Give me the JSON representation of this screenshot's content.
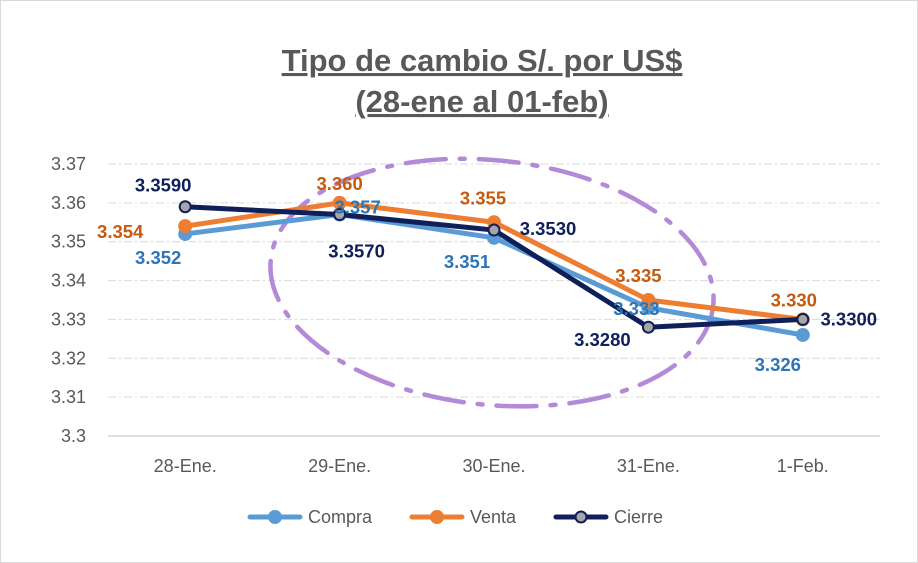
{
  "chart_data": {
    "type": "line",
    "title_lines": [
      "Tipo de cambio S/. por US$",
      "(28-ene al 01-feb)"
    ],
    "categories": [
      "28-Ene.",
      "29-Ene.",
      "30-Ene.",
      "31-Ene.",
      "1-Feb."
    ],
    "ylim": [
      3.3,
      3.37
    ],
    "yticks": [
      "3.3",
      "3.31",
      "3.32",
      "3.33",
      "3.34",
      "3.35",
      "3.36",
      "3.37"
    ],
    "grid": true,
    "legend_position": "bottom",
    "series": [
      {
        "name": "Compra",
        "color": "#5B9BD5",
        "label_color": "#2E75B6",
        "marker_fill": "#5B9BD5",
        "values": [
          3.352,
          3.357,
          3.351,
          3.333,
          3.326
        ],
        "labels": [
          "3.352",
          "3.357",
          "3.351",
          "3.333",
          "3.326"
        ]
      },
      {
        "name": "Venta",
        "color": "#ED7D31",
        "label_color": "#C55A11",
        "marker_fill": "#ED7D31",
        "values": [
          3.354,
          3.36,
          3.355,
          3.335,
          3.33
        ],
        "labels": [
          "3.354",
          "3.360",
          "3.355",
          "3.335",
          "3.330"
        ]
      },
      {
        "name": "Cierre",
        "color": "#0F1F5A",
        "label_color": "#0F1F5A",
        "marker_fill": "#A6A6A6",
        "values": [
          3.359,
          3.357,
          3.353,
          3.328,
          3.33
        ],
        "labels": [
          "3.3590",
          "3.3570",
          "3.3530",
          "3.3280",
          "3.3300"
        ]
      }
    ],
    "annotation": {
      "shape": "ellipse",
      "style": "dash-dot",
      "color": "#B48AD8",
      "spans_categories": [
        "29-Ene.",
        "31-Ene."
      ]
    }
  }
}
